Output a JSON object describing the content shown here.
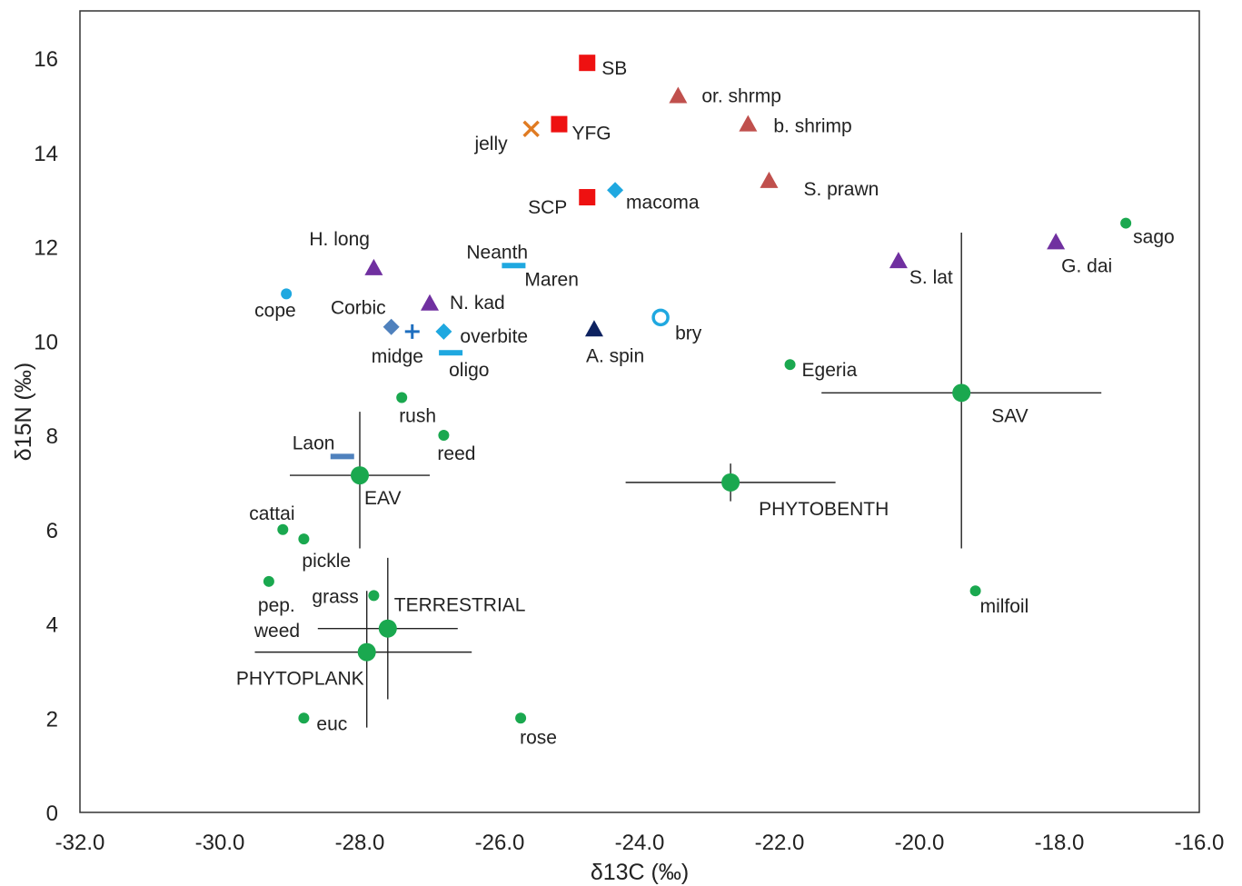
{
  "chart_data": {
    "type": "scatter",
    "xlabel": "δ13C (‰)",
    "ylabel": "δ15N (‰)",
    "xlim": [
      -32,
      -16
    ],
    "ylim": [
      0,
      17
    ],
    "x_ticks": [
      "-32.0",
      "-30.0",
      "-28.0",
      "-26.0",
      "-24.0",
      "-22.0",
      "-20.0",
      "-18.0",
      "-16.0"
    ],
    "y_ticks": [
      "0",
      "2",
      "4",
      "6",
      "8",
      "10",
      "12",
      "14",
      "16"
    ],
    "grid": false,
    "points": [
      {
        "label": "SB",
        "x": -24.75,
        "y": 15.9,
        "marker": "square",
        "color": "#ee1111"
      },
      {
        "label": "YFG",
        "x": -25.15,
        "y": 14.6,
        "marker": "square",
        "color": "#ee1111"
      },
      {
        "label": "SCP",
        "x": -24.75,
        "y": 13.05,
        "marker": "square",
        "color": "#ee1111"
      },
      {
        "label": "jelly",
        "x": -25.55,
        "y": 14.5,
        "marker": "x",
        "color": "#e07b22"
      },
      {
        "label": "or. shrmp",
        "x": -23.45,
        "y": 15.2,
        "marker": "triangle",
        "color": "#c0504d"
      },
      {
        "label": "b. shrimp",
        "x": -22.45,
        "y": 14.6,
        "marker": "triangle",
        "color": "#c0504d"
      },
      {
        "label": "S. prawn",
        "x": -22.15,
        "y": 13.4,
        "marker": "triangle",
        "color": "#c0504d"
      },
      {
        "label": "macoma",
        "x": -24.35,
        "y": 13.2,
        "marker": "diamond",
        "color": "#1fa8e0"
      },
      {
        "label": "H. long",
        "x": -27.8,
        "y": 11.55,
        "marker": "triangle",
        "color": "#7030a0"
      },
      {
        "label": "N. kad",
        "x": -27.0,
        "y": 10.8,
        "marker": "triangle",
        "color": "#7030a0"
      },
      {
        "label": "S. lat",
        "x": -20.3,
        "y": 11.7,
        "marker": "triangle",
        "color": "#7030a0"
      },
      {
        "label": "G. dai",
        "x": -18.05,
        "y": 12.1,
        "marker": "triangle",
        "color": "#7030a0"
      },
      {
        "label": "A. spin",
        "x": -24.65,
        "y": 10.25,
        "marker": "triangle",
        "color": "#0d2260"
      },
      {
        "label": "Neanth",
        "x": -25.8,
        "y": 11.6,
        "marker": "dash",
        "color": "#1fa8e0"
      },
      {
        "label": "Maren",
        "x": -25.8,
        "y": 11.6,
        "marker": "none",
        "color": "#1fa8e0"
      },
      {
        "label": "oligo",
        "x": -26.7,
        "y": 9.75,
        "marker": "dash",
        "color": "#1fa8e0"
      },
      {
        "label": "overbite",
        "x": -26.8,
        "y": 10.2,
        "marker": "diamond",
        "color": "#1fa8e0"
      },
      {
        "label": "Corbic",
        "x": -27.55,
        "y": 10.3,
        "marker": "diamond",
        "color": "#4f81bd"
      },
      {
        "label": "midge",
        "x": -27.25,
        "y": 10.2,
        "marker": "plus",
        "color": "#1f6fbf"
      },
      {
        "label": "cope",
        "x": -29.05,
        "y": 11.0,
        "marker": "circle-small",
        "color": "#1fa8e0"
      },
      {
        "label": "bry",
        "x": -23.7,
        "y": 10.5,
        "marker": "circle-open",
        "color": "#1fa8e0"
      },
      {
        "label": "Laon",
        "x": -28.25,
        "y": 7.55,
        "marker": "dash",
        "color": "#4f81bd"
      },
      {
        "label": "sago",
        "x": -17.05,
        "y": 12.5,
        "marker": "circle-small",
        "color": "#1aa84f"
      },
      {
        "label": "Egeria",
        "x": -21.85,
        "y": 9.5,
        "marker": "circle-small",
        "color": "#1aa84f"
      },
      {
        "label": "rush",
        "x": -27.4,
        "y": 8.8,
        "marker": "circle-small",
        "color": "#1aa84f"
      },
      {
        "label": "reed",
        "x": -26.8,
        "y": 8.0,
        "marker": "circle-small",
        "color": "#1aa84f"
      },
      {
        "label": "cattai",
        "x": -29.1,
        "y": 6.0,
        "marker": "circle-small",
        "color": "#1aa84f"
      },
      {
        "label": "pickle",
        "x": -28.8,
        "y": 5.8,
        "marker": "circle-small",
        "color": "#1aa84f"
      },
      {
        "label": "pep. weed",
        "x": -29.3,
        "y": 4.9,
        "marker": "circle-small",
        "color": "#1aa84f"
      },
      {
        "label": "grass",
        "x": -27.8,
        "y": 4.6,
        "marker": "circle-small",
        "color": "#1aa84f"
      },
      {
        "label": "milfoil",
        "x": -19.2,
        "y": 4.7,
        "marker": "circle-small",
        "color": "#1aa84f"
      },
      {
        "label": "euc",
        "x": -28.8,
        "y": 2.0,
        "marker": "circle-small",
        "color": "#1aa84f"
      },
      {
        "label": "rose",
        "x": -25.7,
        "y": 2.0,
        "marker": "circle-small",
        "color": "#1aa84f"
      }
    ],
    "groups": [
      {
        "label": "SAV",
        "x": -19.4,
        "y": 8.9,
        "x_range": [
          -21.4,
          -17.4
        ],
        "y_range": [
          5.6,
          12.3
        ],
        "color": "#1aa84f"
      },
      {
        "label": "EAV",
        "x": -28.0,
        "y": 7.15,
        "x_range": [
          -29.0,
          -27.0
        ],
        "y_range": [
          5.6,
          8.5
        ],
        "color": "#1aa84f"
      },
      {
        "label": "PHYTOBENTH",
        "x": -22.7,
        "y": 7.0,
        "x_range": [
          -24.2,
          -21.2
        ],
        "y_range": [
          6.6,
          7.4
        ],
        "color": "#1aa84f"
      },
      {
        "label": "TERRESTRIAL",
        "x": -27.6,
        "y": 3.9,
        "x_range": [
          -28.6,
          -26.6
        ],
        "y_range": [
          2.4,
          5.4
        ],
        "color": "#1aa84f"
      },
      {
        "label": "PHYTOPLANK",
        "x": -27.9,
        "y": 3.4,
        "x_range": [
          -29.5,
          -26.4
        ],
        "y_range": [
          1.8,
          4.7
        ],
        "color": "#1aa84f"
      }
    ]
  }
}
